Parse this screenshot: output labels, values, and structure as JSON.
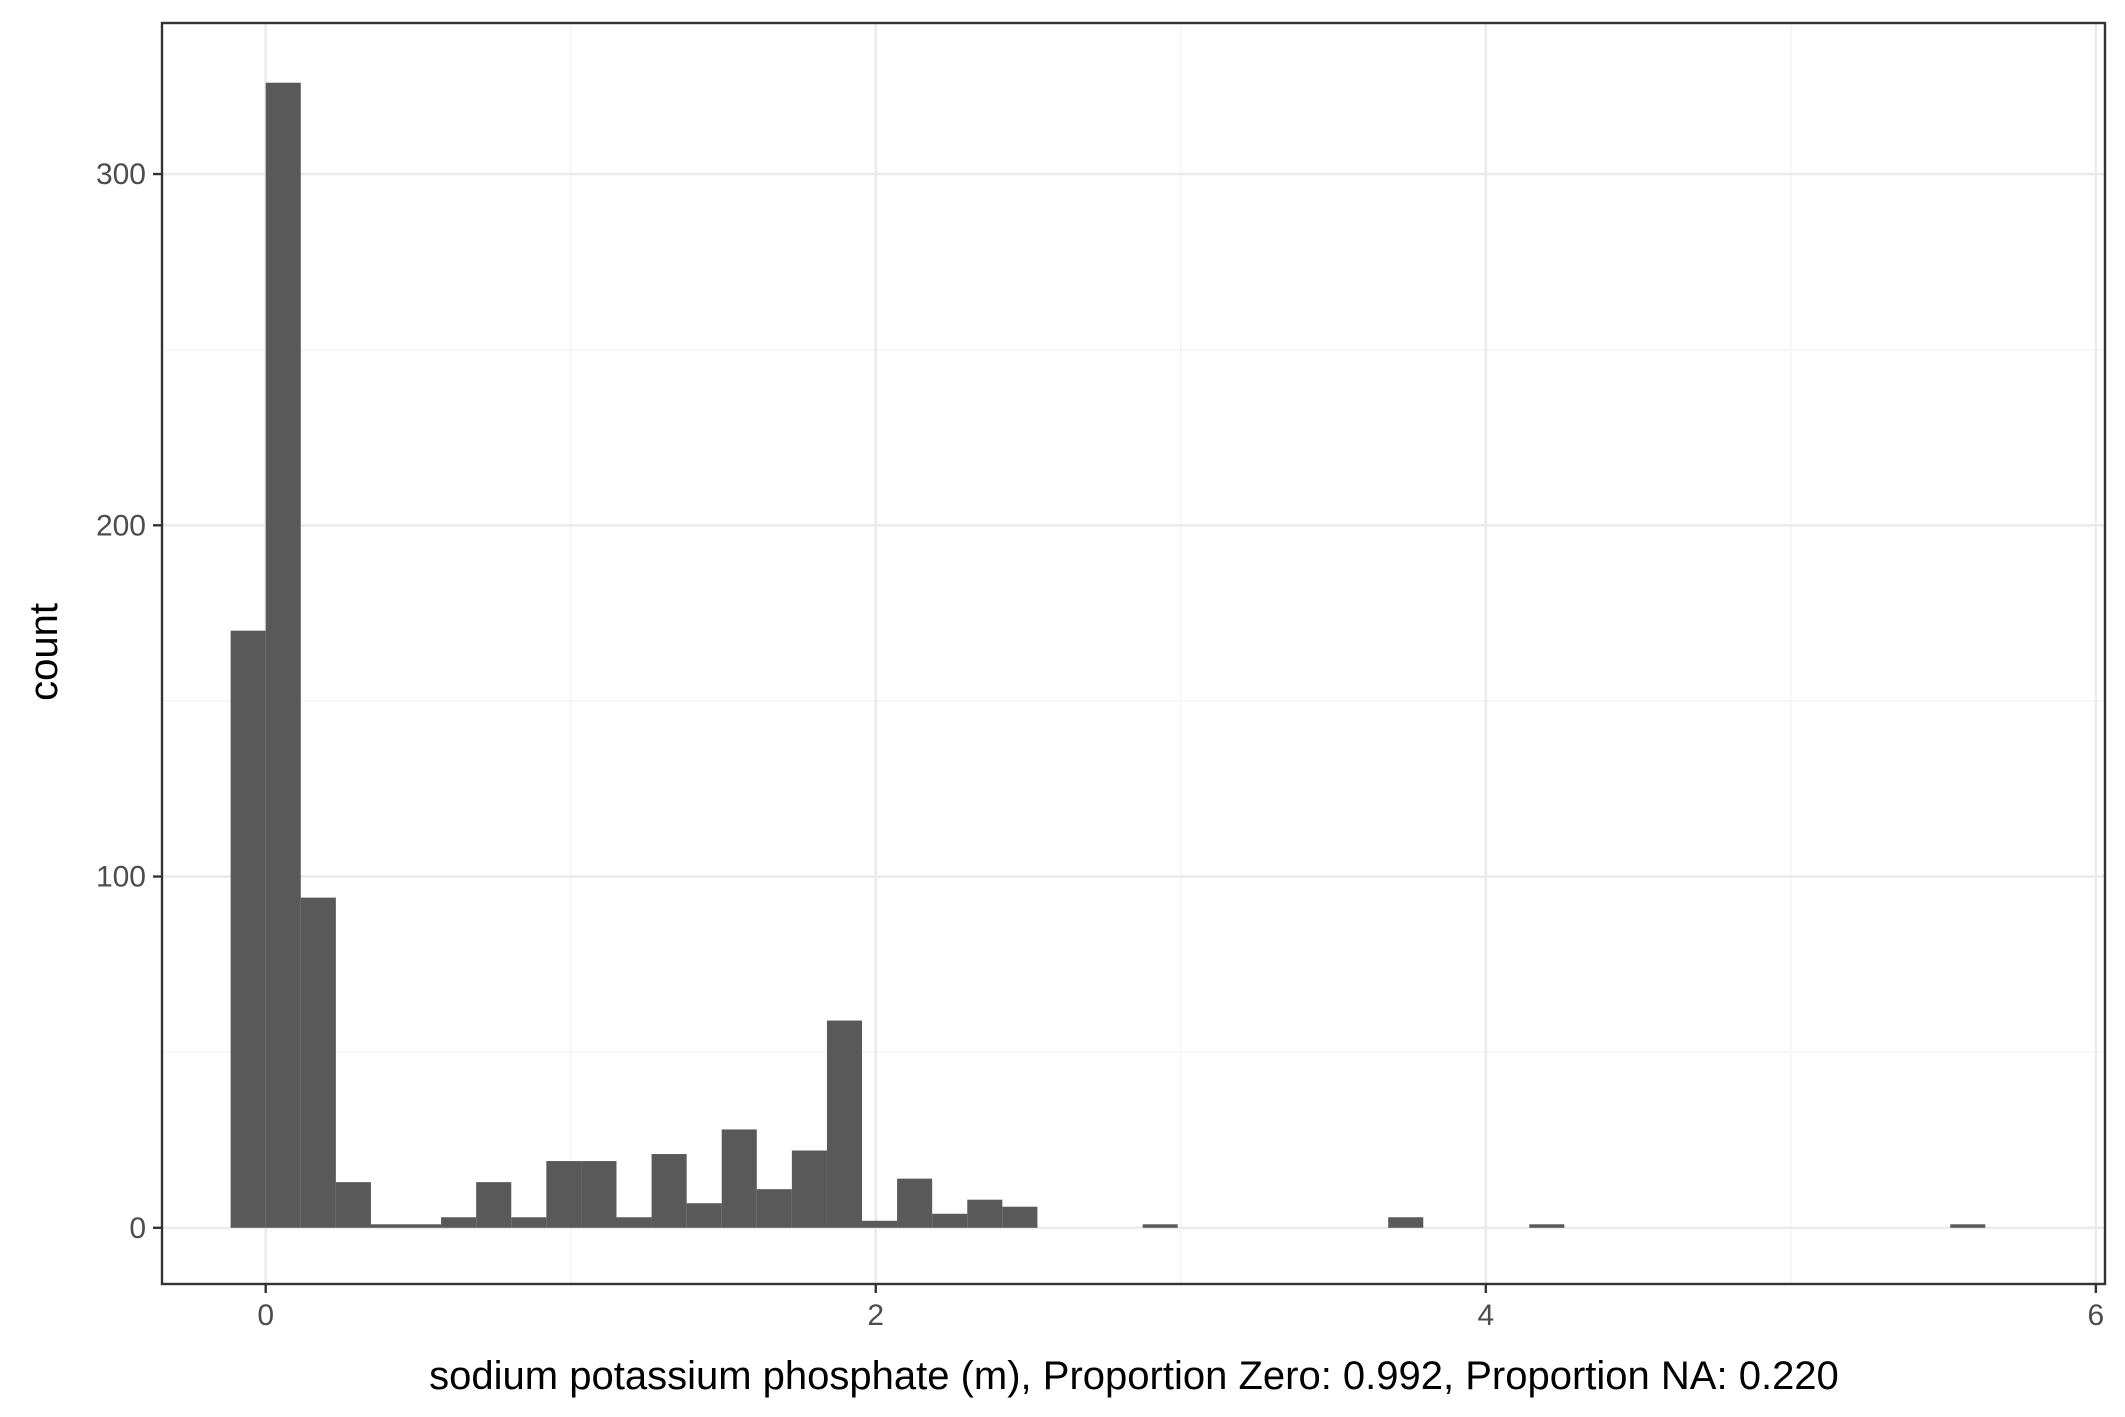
{
  "chart_data": {
    "type": "bar",
    "title": "",
    "xlabel": "sodium potassium phosphate (m), Proportion Zero: 0.992, Proportion NA: 0.220",
    "ylabel": "count",
    "xlim": [
      -0.34,
      6.03
    ],
    "ylim": [
      -16,
      343
    ],
    "x_ticks": [
      0,
      2,
      4,
      6
    ],
    "x_tick_labels": [
      "0",
      "2",
      "4",
      "6"
    ],
    "x_minor_ticks": [
      1,
      3,
      5
    ],
    "y_ticks": [
      0,
      100,
      200,
      300
    ],
    "y_tick_labels": [
      "0",
      "100",
      "200",
      "300"
    ],
    "y_minor_ticks": [
      50,
      150,
      250
    ],
    "grid": true,
    "bin_width": 0.115,
    "bins": [
      {
        "x": -0.0575,
        "count": 170
      },
      {
        "x": 0.0575,
        "count": 326
      },
      {
        "x": 0.1725,
        "count": 94
      },
      {
        "x": 0.2875,
        "count": 13
      },
      {
        "x": 0.4025,
        "count": 1
      },
      {
        "x": 0.5175,
        "count": 1
      },
      {
        "x": 0.6325,
        "count": 3
      },
      {
        "x": 0.7475,
        "count": 13
      },
      {
        "x": 0.8625,
        "count": 3
      },
      {
        "x": 0.9775,
        "count": 19
      },
      {
        "x": 1.0925,
        "count": 19
      },
      {
        "x": 1.2075,
        "count": 3
      },
      {
        "x": 1.3225,
        "count": 21
      },
      {
        "x": 1.4375,
        "count": 7
      },
      {
        "x": 1.5525,
        "count": 28
      },
      {
        "x": 1.6675,
        "count": 11
      },
      {
        "x": 1.7825,
        "count": 22
      },
      {
        "x": 1.8975,
        "count": 59
      },
      {
        "x": 2.0125,
        "count": 2
      },
      {
        "x": 2.1275,
        "count": 14
      },
      {
        "x": 2.2425,
        "count": 4
      },
      {
        "x": 2.3575,
        "count": 8
      },
      {
        "x": 2.4725,
        "count": 6
      },
      {
        "x": 2.9325,
        "count": 1
      },
      {
        "x": 3.7375,
        "count": 3
      },
      {
        "x": 4.2,
        "count": 1
      },
      {
        "x": 5.58,
        "count": 1
      }
    ],
    "colors": {
      "bar": "#595959",
      "panel_border": "#333333",
      "grid_major": "#ebebeb",
      "grid_minor": "#f5f5f5",
      "background": "#ffffff"
    }
  }
}
